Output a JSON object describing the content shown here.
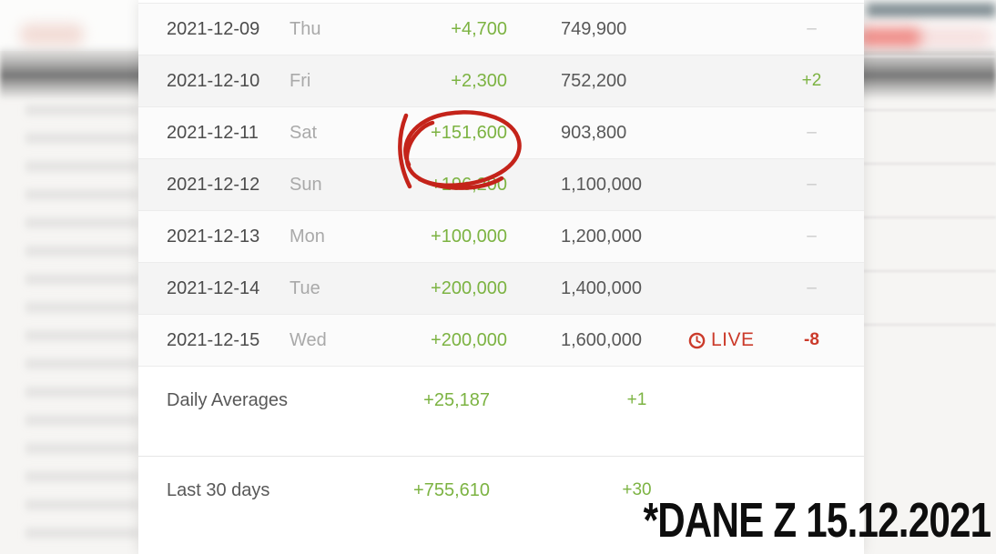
{
  "watermark": "*DANE Z 15.12.2021",
  "table": {
    "live_label": "LIVE",
    "rows": [
      {
        "date": "2021-12-09",
        "day": "Thu",
        "change": "+4,700",
        "total": "749,900",
        "live": false,
        "delta": "–",
        "delta_state": "muted",
        "circled": false
      },
      {
        "date": "2021-12-10",
        "day": "Fri",
        "change": "+2,300",
        "total": "752,200",
        "live": false,
        "delta": "+2",
        "delta_state": "up",
        "circled": false
      },
      {
        "date": "2021-12-11",
        "day": "Sat",
        "change": "+151,600",
        "total": "903,800",
        "live": false,
        "delta": "–",
        "delta_state": "muted",
        "circled": true
      },
      {
        "date": "2021-12-12",
        "day": "Sun",
        "change": "+196,200",
        "total": "1,100,000",
        "live": false,
        "delta": "–",
        "delta_state": "muted",
        "circled": false
      },
      {
        "date": "2021-12-13",
        "day": "Mon",
        "change": "+100,000",
        "total": "1,200,000",
        "live": false,
        "delta": "–",
        "delta_state": "muted",
        "circled": false
      },
      {
        "date": "2021-12-14",
        "day": "Tue",
        "change": "+200,000",
        "total": "1,400,000",
        "live": false,
        "delta": "–",
        "delta_state": "muted",
        "circled": false
      },
      {
        "date": "2021-12-15",
        "day": "Wed",
        "change": "+200,000",
        "total": "1,600,000",
        "live": true,
        "delta": "-8",
        "delta_state": "down",
        "circled": false
      }
    ],
    "summary_rows": [
      {
        "label": "Daily Averages",
        "change": "+25,187",
        "delta": "+1",
        "delta_state": "up"
      },
      {
        "label": "Last 30 days",
        "change": "+755,610",
        "delta": "+30",
        "delta_state": "up"
      }
    ]
  },
  "colors": {
    "positive": "#7cb342",
    "negative": "#cb3a2a",
    "muted": "#c9c9c9",
    "annotation_red": "#c4231a"
  }
}
